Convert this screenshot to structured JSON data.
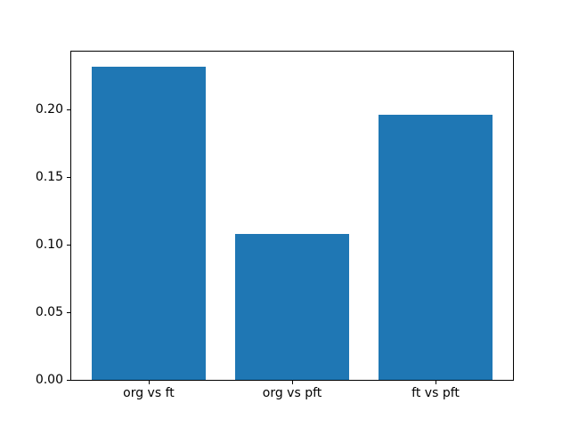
{
  "chart_data": {
    "type": "bar",
    "title": "",
    "categories": [
      "org vs ft",
      "org vs pft",
      "ft vs pft"
    ],
    "values": [
      0.232,
      0.108,
      0.196
    ],
    "bar_color": "#1f77b4",
    "bar_width_fraction": 0.8,
    "xlim": [
      -0.54,
      2.54
    ],
    "ylim": [
      0,
      0.243
    ],
    "yticks": [
      0,
      0.05,
      0.1,
      0.15,
      0.2
    ],
    "ytick_labels": [
      "0.00",
      "0.05",
      "0.10",
      "0.15",
      "0.20"
    ],
    "xlabel": "",
    "ylabel": "",
    "grid": false,
    "legend": null,
    "axis_color": "#000000",
    "text_color": "#000000",
    "background": "#ffffff"
  }
}
